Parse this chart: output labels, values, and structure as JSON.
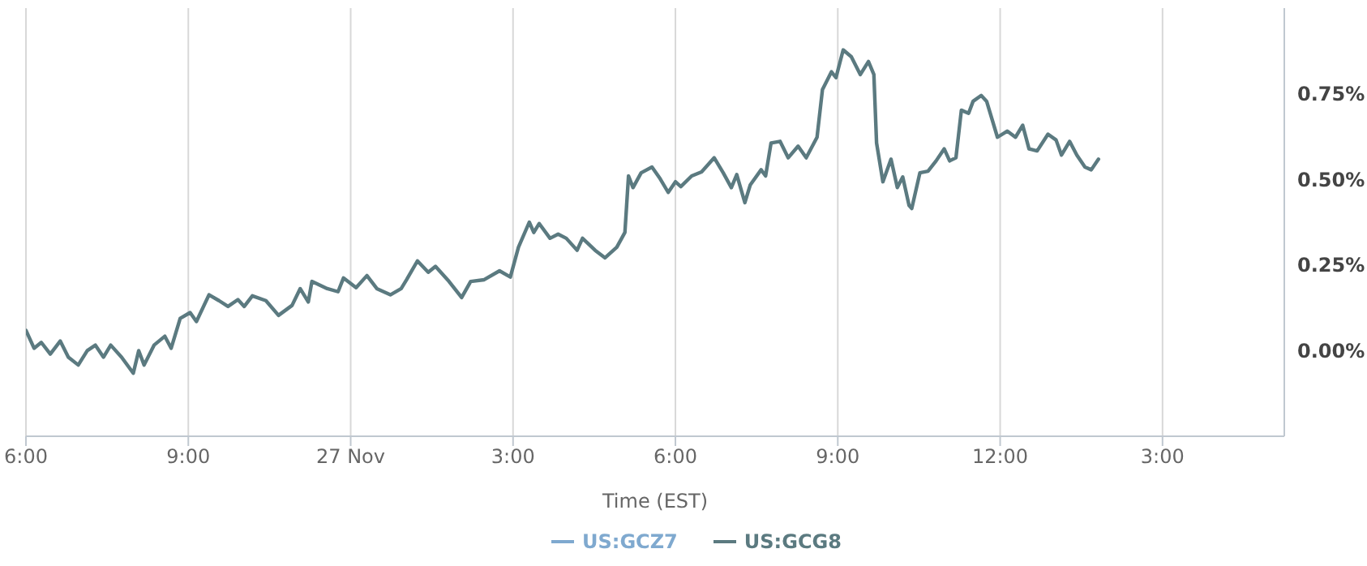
{
  "chart_data": {
    "type": "line",
    "xlabel": "Time (EST)",
    "x": [
      "--11-26T18:00",
      "--11-26T18:09",
      "--11-26T18:17",
      "--11-26T18:27",
      "--11-26T18:38",
      "--11-26T18:47",
      "--11-26T18:58",
      "--11-26T19:08",
      "--11-26T19:17",
      "--11-26T19:26",
      "--11-26T19:34",
      "--11-26T19:46",
      "--11-26T19:59",
      "--11-26T20:05",
      "--11-26T20:11",
      "--11-26T20:22",
      "--11-26T20:34",
      "--11-26T20:41",
      "--11-26T20:51",
      "--11-26T21:02",
      "--11-26T21:09",
      "--11-26T21:23",
      "--11-26T21:34",
      "--11-26T21:44",
      "--11-26T21:55",
      "--11-26T22:02",
      "--11-26T22:11",
      "--11-26T22:26",
      "--11-26T22:40",
      "--11-26T22:55",
      "--11-26T23:04",
      "--11-26T23:13",
      "--11-26T23:17",
      "--11-26T23:34",
      "--11-26T23:46",
      "--11-26T23:52",
      "--11-27T00:06",
      "--11-27T00:18",
      "--11-27T00:29",
      "--11-27T00:44",
      "--11-27T00:56",
      "--11-27T01:02",
      "--11-27T01:14",
      "--11-27T01:26",
      "--11-27T01:34",
      "--11-27T01:49",
      "--11-27T02:03",
      "--11-27T02:13",
      "--11-27T02:28",
      "--11-27T02:45",
      "--11-27T02:57",
      "--11-27T03:06",
      "--11-27T03:18",
      "--11-27T03:23",
      "--11-27T03:29",
      "--11-27T03:41",
      "--11-27T03:50",
      "--11-27T03:59",
      "--11-27T04:11",
      "--11-27T04:17",
      "--11-27T04:31",
      "--11-27T04:42",
      "--11-27T04:55",
      "--11-27T05:04",
      "--11-27T05:08",
      "--11-27T05:13",
      "--11-27T05:22",
      "--11-27T05:34",
      "--11-27T05:43",
      "--11-27T05:52",
      "--11-27T06:00",
      "--11-27T06:06",
      "--11-27T06:18",
      "--11-27T06:29",
      "--11-27T06:43",
      "--11-27T06:53",
      "--11-27T07:02",
      "--11-27T07:08",
      "--11-27T07:17",
      "--11-27T07:23",
      "--11-27T07:35",
      "--11-27T07:40",
      "--11-27T07:46",
      "--11-27T07:56",
      "--11-27T08:05",
      "--11-27T08:16",
      "--11-27T08:25",
      "--11-27T08:37",
      "--11-27T08:43",
      "--11-27T08:53",
      "--11-27T08:58",
      "--11-27T09:06",
      "--11-27T09:15",
      "--11-27T09:25",
      "--11-27T09:34",
      "--11-27T09:40",
      "--11-27T09:43",
      "--11-27T09:50",
      "--11-27T09:59",
      "--11-27T10:06",
      "--11-27T10:12",
      "--11-27T10:19",
      "--11-27T10:22",
      "--11-27T10:31",
      "--11-27T10:40",
      "--11-27T10:49",
      "--11-27T10:58",
      "--11-27T11:04",
      "--11-27T11:11",
      "--11-27T11:17",
      "--11-27T11:25",
      "--11-27T11:30",
      "--11-27T11:39",
      "--11-27T11:45",
      "--11-27T11:57",
      "--11-27T12:08",
      "--11-27T12:17",
      "--11-27T12:25",
      "--11-27T12:32",
      "--11-27T12:41",
      "--11-27T12:53",
      "--11-27T13:02",
      "--11-27T13:08",
      "--11-27T13:17",
      "--11-27T13:25",
      "--11-27T13:34",
      "--11-27T13:41",
      "--11-27T13:49"
    ],
    "series": [
      {
        "name": "US:GCZ7",
        "color": "#7fa9cf",
        "values": [
          null,
          null,
          null,
          null,
          null,
          null,
          null,
          null,
          null,
          null,
          null,
          null,
          null,
          null,
          null,
          null,
          null,
          null,
          null,
          null,
          null,
          null,
          null,
          null,
          null,
          null,
          null,
          null,
          null,
          null,
          null,
          null,
          null,
          null,
          null,
          null,
          null,
          null,
          null,
          null,
          null,
          null,
          null,
          null,
          null,
          null,
          null,
          null,
          null,
          null,
          null,
          null,
          null,
          null,
          null,
          null,
          null,
          null,
          null,
          null,
          null,
          null,
          null,
          null,
          null,
          null,
          null,
          null,
          null,
          null,
          null,
          null,
          null,
          null,
          null,
          null,
          null,
          null,
          null,
          null,
          null,
          null,
          null,
          null,
          null,
          null,
          null,
          null,
          null,
          null,
          null,
          null,
          null,
          null,
          null,
          null,
          null,
          null,
          null,
          null,
          null,
          null,
          null,
          null,
          null,
          null,
          null,
          null,
          null,
          null,
          null,
          null,
          null,
          null,
          null,
          null,
          null,
          null,
          null,
          null,
          null,
          null,
          null,
          null,
          null,
          null,
          null,
          null
        ]
      },
      {
        "name": "US:GCG8",
        "color": "#5b7a80",
        "values": [
          0.059,
          0.007,
          0.024,
          -0.01,
          0.028,
          -0.019,
          -0.042,
          0,
          0.016,
          -0.019,
          0.016,
          -0.019,
          -0.066,
          0,
          -0.042,
          0.016,
          0.042,
          0.007,
          0.094,
          0.111,
          0.085,
          0.163,
          0.146,
          0.129,
          0.149,
          0.129,
          0.16,
          0.146,
          0.103,
          0.132,
          0.181,
          0.142,
          0.202,
          0.181,
          0.172,
          0.212,
          0.184,
          0.219,
          0.181,
          0.163,
          0.181,
          0.207,
          0.262,
          0.229,
          0.246,
          0.202,
          0.155,
          0.202,
          0.207,
          0.233,
          0.215,
          0.302,
          0.375,
          0.345,
          0.371,
          0.328,
          0.34,
          0.328,
          0.293,
          0.328,
          0.293,
          0.271,
          0.302,
          0.345,
          0.51,
          0.476,
          0.519,
          0.536,
          0.502,
          0.462,
          0.493,
          0.479,
          0.51,
          0.522,
          0.563,
          0.519,
          0.476,
          0.514,
          0.432,
          0.484,
          0.528,
          0.51,
          0.606,
          0.611,
          0.563,
          0.597,
          0.563,
          0.623,
          0.762,
          0.814,
          0.797,
          0.878,
          0.858,
          0.806,
          0.844,
          0.806,
          0.606,
          0.493,
          0.559,
          0.476,
          0.507,
          0.424,
          0.415,
          0.519,
          0.524,
          0.554,
          0.589,
          0.554,
          0.563,
          0.702,
          0.693,
          0.728,
          0.745,
          0.728,
          0.623,
          0.641,
          0.623,
          0.658,
          0.589,
          0.583,
          0.632,
          0.615,
          0.571,
          0.611,
          0.571,
          0.536,
          0.528,
          0.559
        ]
      }
    ],
    "xlim": [
      "--11-26T18:00",
      "--11-27T17:15"
    ],
    "xticks": [
      {
        "value": "--11-26T18:00",
        "label": "6:00"
      },
      {
        "value": "--11-26T21:00",
        "label": "9:00"
      },
      {
        "value": "--11-27T00:00",
        "label": "27 Nov"
      },
      {
        "value": "--11-27T03:00",
        "label": "3:00"
      },
      {
        "value": "--11-27T06:00",
        "label": "6:00"
      },
      {
        "value": "--11-27T09:00",
        "label": "9:00"
      },
      {
        "value": "--11-27T12:00",
        "label": "12:00"
      },
      {
        "value": "--11-27T15:00",
        "label": "3:00"
      }
    ],
    "ylim": [
      -0.25,
      1.0
    ],
    "yticks": [
      {
        "value": 0,
        "label": "0.00%"
      },
      {
        "value": 0.25,
        "label": "0.25%"
      },
      {
        "value": 0.5,
        "label": "0.50%"
      },
      {
        "value": 0.75,
        "label": "0.75%"
      }
    ],
    "grid": true,
    "legend": "bottom"
  }
}
